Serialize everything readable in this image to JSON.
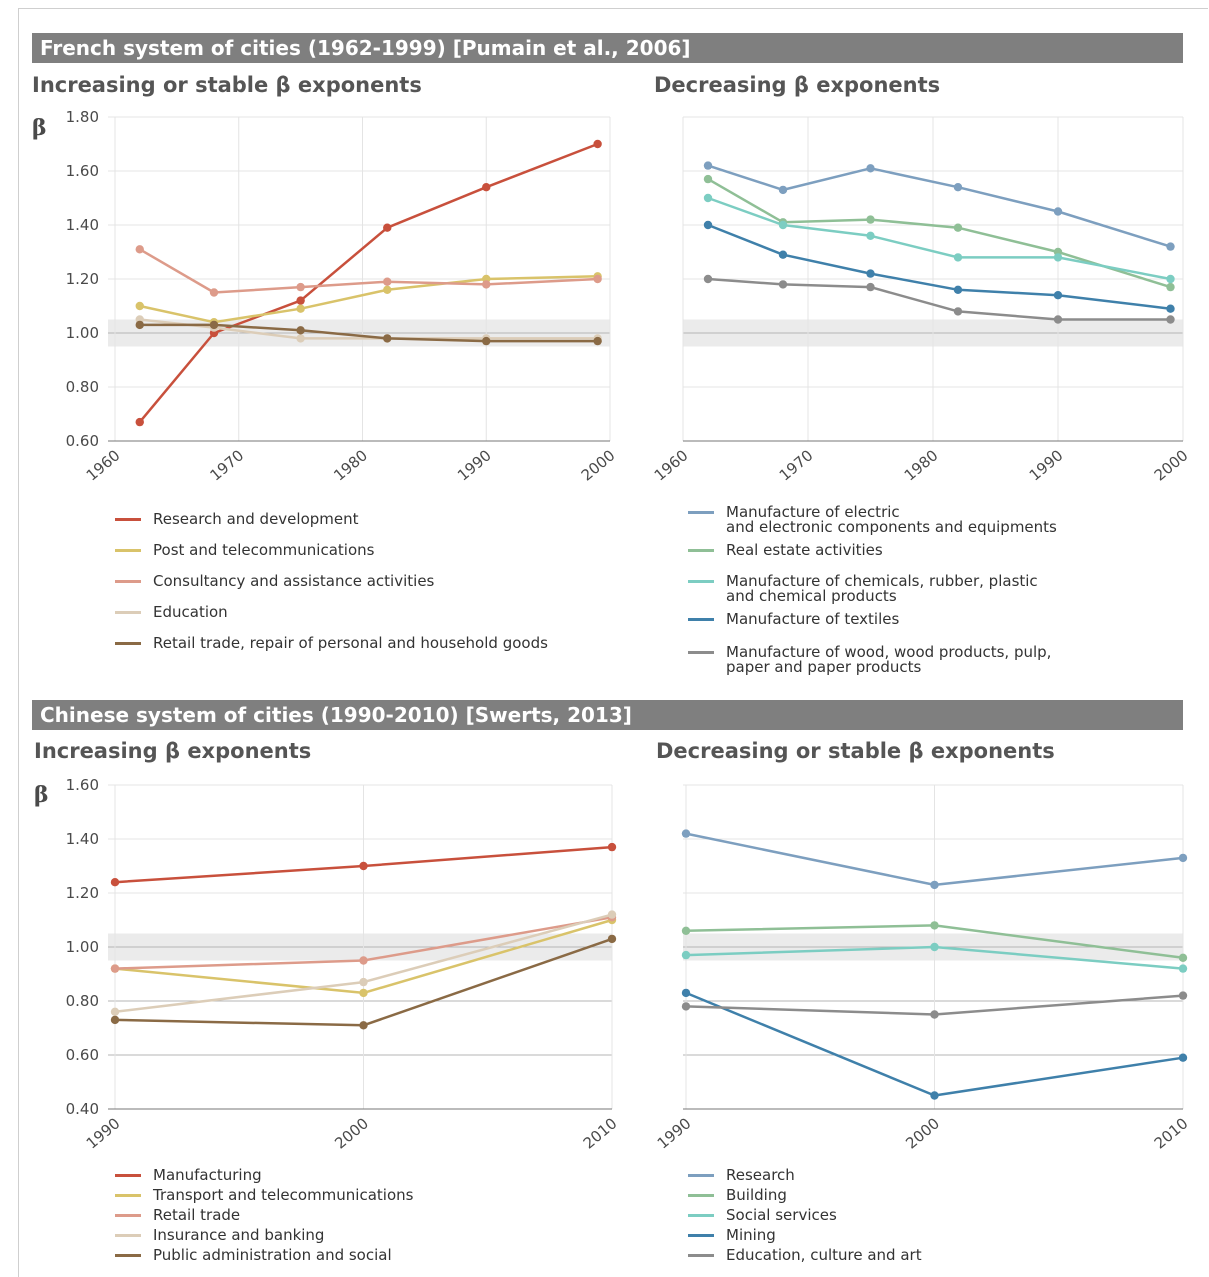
{
  "sections": {
    "french": {
      "title": "French system of cities (1962-1999) [Pumain et al., 2006]"
    },
    "chinese": {
      "title": "Chinese system of cities (1990-2010) [Swerts, 2013]"
    }
  },
  "colors": {
    "red": "#c8503c",
    "yellow": "#d9c36a",
    "pink": "#dd9b8a",
    "beige": "#dccdb8",
    "brown": "#8a6a45",
    "steel": "#7d9fbf",
    "green": "#8fbf96",
    "teal": "#7ccdc2",
    "blue": "#3f80aa",
    "gray": "#8c8c8c",
    "band": "#ebebeb",
    "grid": "#e4e4e4",
    "axis": "#777777"
  },
  "chart_data": [
    {
      "id": "fr_left",
      "type": "line",
      "title": "Increasing or stable β exponents",
      "ylabel": "β",
      "xlim": [
        1960,
        2000
      ],
      "ylim": [
        0.6,
        1.8
      ],
      "xticks": [
        1960,
        1970,
        1980,
        1990,
        2000
      ],
      "xtick_labels": [
        "1960",
        "1970",
        "1980",
        "1990",
        "2000"
      ],
      "yticks": [
        0.6,
        0.8,
        1.0,
        1.2,
        1.4,
        1.6,
        1.8
      ],
      "ytick_labels": [
        "0.60",
        "0.80",
        "1.00",
        "1.20",
        "1.40",
        "1.60",
        "1.80"
      ],
      "band": [
        0.95,
        1.05
      ],
      "grid": true,
      "x": [
        1962,
        1968,
        1975,
        1982,
        1990,
        1999
      ],
      "series": [
        {
          "name": "Research and development",
          "color": "red",
          "values": [
            0.67,
            1.0,
            1.12,
            1.39,
            1.54,
            1.7
          ]
        },
        {
          "name": "Post and telecommunications",
          "color": "yellow",
          "values": [
            1.1,
            1.04,
            1.09,
            1.16,
            1.2,
            1.21
          ]
        },
        {
          "name": "Consultancy and assistance activities",
          "color": "pink",
          "values": [
            1.31,
            1.15,
            1.17,
            1.19,
            1.18,
            1.2
          ]
        },
        {
          "name": "Education",
          "color": "beige",
          "values": [
            1.05,
            1.02,
            0.98,
            0.98,
            0.98,
            0.98
          ]
        },
        {
          "name": "Retail trade, repair of personal and household goods",
          "color": "brown",
          "values": [
            1.03,
            1.03,
            1.01,
            0.98,
            0.97,
            0.97
          ]
        }
      ]
    },
    {
      "id": "fr_right",
      "type": "line",
      "title": "Decreasing β exponents",
      "xlim": [
        1960,
        2000
      ],
      "ylim": [
        0.6,
        1.8
      ],
      "xticks": [
        1960,
        1970,
        1980,
        1990,
        2000
      ],
      "xtick_labels": [
        "1960",
        "1970",
        "1980",
        "1990",
        "2000"
      ],
      "band": [
        0.95,
        1.05
      ],
      "grid": true,
      "x": [
        1962,
        1968,
        1975,
        1982,
        1990,
        1999
      ],
      "series": [
        {
          "name": "Manufacture of electric\nand electronic components and equipments",
          "color": "steel",
          "values": [
            1.62,
            1.53,
            1.61,
            1.54,
            1.45,
            1.32
          ]
        },
        {
          "name": "Real estate activities",
          "color": "green",
          "values": [
            1.57,
            1.41,
            1.42,
            1.39,
            1.3,
            1.17
          ]
        },
        {
          "name": "Manufacture of chemicals, rubber, plastic\nand chemical products",
          "color": "teal",
          "values": [
            1.5,
            1.4,
            1.36,
            1.28,
            1.28,
            1.2
          ]
        },
        {
          "name": "Manufacture of textiles",
          "color": "blue",
          "values": [
            1.4,
            1.29,
            1.22,
            1.16,
            1.14,
            1.09
          ]
        },
        {
          "name": "Manufacture of wood, wood products, pulp,\npaper and paper products",
          "color": "gray",
          "values": [
            1.2,
            1.18,
            1.17,
            1.08,
            1.05,
            1.05
          ]
        }
      ]
    },
    {
      "id": "cn_left",
      "type": "line",
      "title": "Increasing β exponents",
      "ylabel": "β",
      "xlim": [
        1990,
        2010
      ],
      "ylim": [
        0.4,
        1.6
      ],
      "xticks": [
        1990,
        2000,
        2010
      ],
      "xtick_labels": [
        "1990",
        "2000",
        "2010"
      ],
      "yticks": [
        0.4,
        0.6,
        0.8,
        1.0,
        1.2,
        1.4,
        1.6
      ],
      "ytick_labels": [
        "0.40",
        "0.60",
        "0.80",
        "1.00",
        "1.20",
        "1.40",
        "1.60"
      ],
      "band": [
        0.95,
        1.05
      ],
      "grid": true,
      "x": [
        1990,
        2000,
        2010
      ],
      "series": [
        {
          "name": "Manufacturing",
          "color": "red",
          "values": [
            1.24,
            1.3,
            1.37
          ]
        },
        {
          "name": "Transport and telecommunications",
          "color": "yellow",
          "values": [
            0.92,
            0.83,
            1.1
          ]
        },
        {
          "name": "Retail trade",
          "color": "pink",
          "values": [
            0.92,
            0.95,
            1.11
          ]
        },
        {
          "name": "Insurance and banking",
          "color": "beige",
          "values": [
            0.76,
            0.87,
            1.12
          ]
        },
        {
          "name": "Public administration and social",
          "color": "brown",
          "values": [
            0.73,
            0.71,
            1.03
          ]
        }
      ]
    },
    {
      "id": "cn_right",
      "type": "line",
      "title": "Decreasing or stable β exponents",
      "xlim": [
        1990,
        2010
      ],
      "ylim": [
        0.4,
        1.6
      ],
      "xticks": [
        1990,
        2000,
        2010
      ],
      "xtick_labels": [
        "1990",
        "2000",
        "2010"
      ],
      "band": [
        0.95,
        1.05
      ],
      "grid": true,
      "x": [
        1990,
        2000,
        2010
      ],
      "series": [
        {
          "name": "Research",
          "color": "steel",
          "values": [
            1.42,
            1.23,
            1.33
          ]
        },
        {
          "name": "Building",
          "color": "green",
          "values": [
            1.06,
            1.08,
            0.96
          ]
        },
        {
          "name": "Social services",
          "color": "teal",
          "values": [
            0.97,
            1.0,
            0.92
          ]
        },
        {
          "name": "Mining",
          "color": "blue",
          "values": [
            0.83,
            0.45,
            0.59
          ]
        },
        {
          "name": "Education, culture and art",
          "color": "gray",
          "values": [
            0.78,
            0.75,
            0.82
          ]
        }
      ]
    }
  ]
}
